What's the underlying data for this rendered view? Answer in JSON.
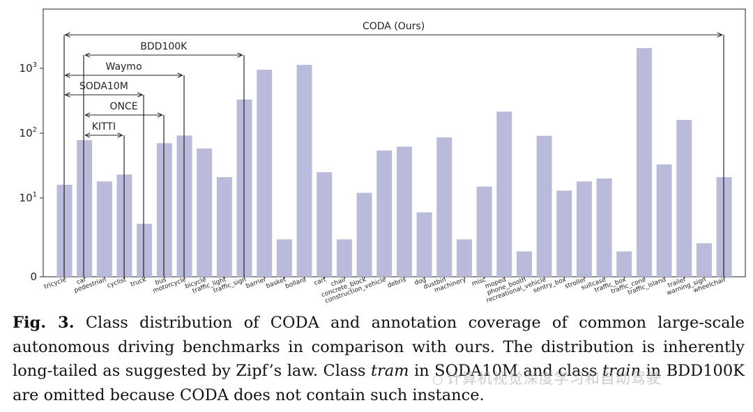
{
  "chart_data": {
    "type": "bar",
    "yscale": "symlog",
    "ylim": [
      0,
      3000
    ],
    "yticks": [
      {
        "value": 0,
        "label": "0"
      },
      {
        "value": 10,
        "label": "10",
        "exp": "1"
      },
      {
        "value": 100,
        "label": "10",
        "exp": "2"
      },
      {
        "value": 1000,
        "label": "10",
        "exp": "3"
      }
    ],
    "bar_color": "#babadb",
    "categories": [
      "tricycle",
      "car",
      "pedestrian",
      "cyclist",
      "truck",
      "bus",
      "motorcycle",
      "bicycle",
      "traffic_light",
      "traffic_sign",
      "barrier",
      "basket",
      "bollard",
      "cart",
      "chair",
      "concrete_block",
      "construction_vehicle",
      "debris",
      "dog",
      "dustbin",
      "machinery",
      "misc",
      "moped",
      "phone_booth",
      "recreational_vehicle",
      "sentry_box",
      "stroller",
      "suitcase",
      "traffic_box",
      "traffic_cone",
      "traffic_island",
      "trailer",
      "warning_sign",
      "wheelchair"
    ],
    "values": [
      16,
      78,
      18,
      23,
      4,
      70,
      92,
      58,
      21,
      330,
      950,
      2.3,
      1130,
      25,
      2.3,
      12,
      54,
      62,
      6,
      86,
      2.3,
      15,
      215,
      1.5,
      91,
      13,
      18,
      20,
      1.5,
      2050,
      33,
      160,
      2,
      21
    ],
    "dataset_spans": [
      {
        "name": "CODA (Ours)",
        "from": "tricycle",
        "to": "wheelchair"
      },
      {
        "name": "BDD100K",
        "from": "car",
        "to": "traffic_sign"
      },
      {
        "name": "Waymo",
        "from": "tricycle",
        "to": "motorcycle"
      },
      {
        "name": "SODA10M",
        "from": "tricycle",
        "to": "truck"
      },
      {
        "name": "ONCE",
        "from": "car",
        "to": "bus"
      },
      {
        "name": "KITTI",
        "from": "car",
        "to": "cyclist"
      }
    ]
  },
  "caption": {
    "label": "Fig. 3.",
    "text_before": " Class distribution of CODA and annotation coverage of common large-scale autonomous driving benchmarks in comparison with ours. The distribution is inherently long-tailed as suggested by Zipf’s law. Class ",
    "italic1": "tram",
    "text_middle": " in SODA10M and class ",
    "italic2": "train",
    "text_after": " in BDD100K are omitted because CODA does not contain such instance."
  },
  "watermark": {
    "icon": "wechat-icon",
    "text": "计算机视觉深度学习和自动驾驶"
  }
}
